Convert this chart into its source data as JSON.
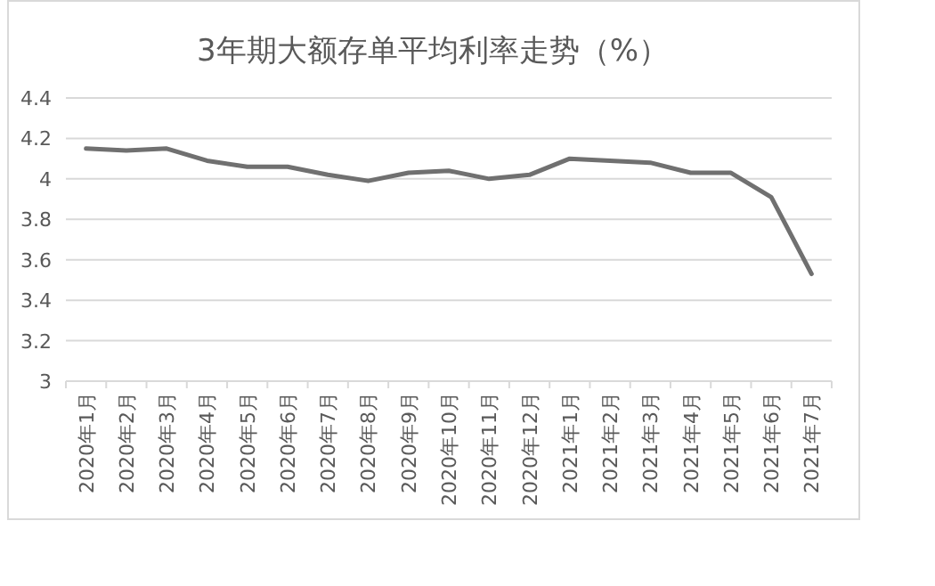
{
  "chart_data": {
    "type": "line",
    "title": "3年期大额存单平均利率走势（%）",
    "categories": [
      "2020年1月",
      "2020年2月",
      "2020年3月",
      "2020年4月",
      "2020年5月",
      "2020年6月",
      "2020年7月",
      "2020年8月",
      "2020年9月",
      "2020年10月",
      "2020年11月",
      "2020年12月",
      "2021年1月",
      "2021年2月",
      "2021年3月",
      "2021年4月",
      "2021年5月",
      "2021年6月",
      "2021年7月"
    ],
    "series": [
      {
        "color": "#707070",
        "values": [
          4.15,
          4.14,
          4.15,
          4.09,
          4.06,
          4.06,
          4.02,
          3.99,
          4.03,
          4.04,
          4.0,
          4.02,
          4.1,
          4.09,
          4.08,
          4.03,
          4.03,
          3.91,
          3.53
        ]
      }
    ],
    "ylim": [
      3,
      4.4
    ],
    "yticks": [
      3,
      3.2,
      3.4,
      3.6,
      3.8,
      4,
      4.2,
      4.4
    ],
    "grid": "y",
    "marker": "none",
    "line_style": "solid"
  }
}
